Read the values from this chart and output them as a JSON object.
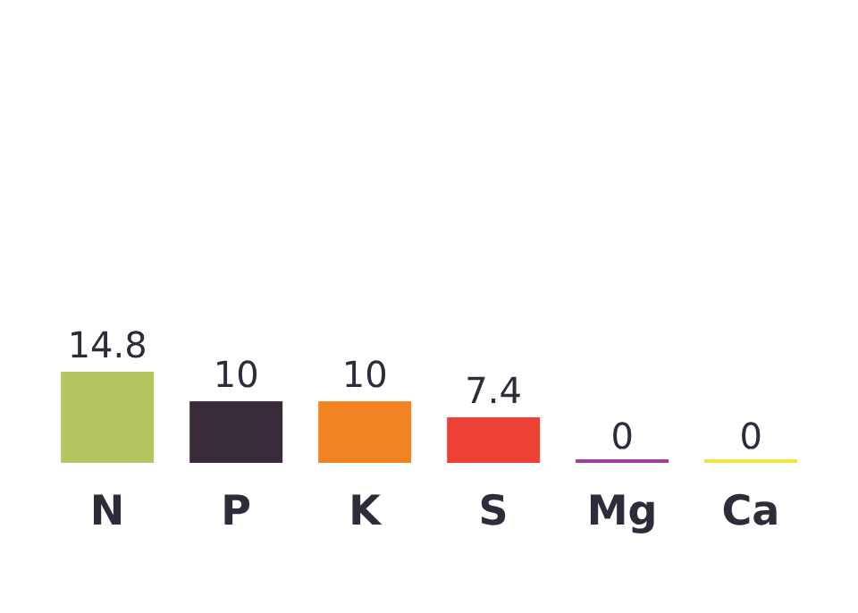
{
  "chart_data": {
    "type": "bar",
    "categories": [
      "N",
      "P",
      "K",
      "S",
      "Mg",
      "Ca"
    ],
    "values": [
      14.8,
      10,
      10,
      7.4,
      0,
      0
    ],
    "colors": [
      "#b5c55f",
      "#3a2b3b",
      "#f28322",
      "#ee4136",
      "#9b3f9b",
      "#f2e23a"
    ],
    "data_labels": true
  }
}
